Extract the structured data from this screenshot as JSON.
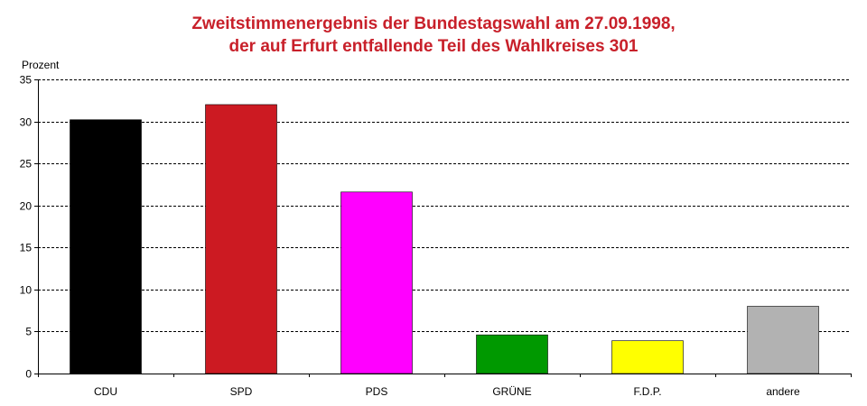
{
  "chart_data": {
    "type": "bar",
    "title_lines": [
      "Zweitstimmenergebnis der Bundestagswahl am 27.09.1998,",
      "der auf Erfurt entfallende Teil des Wahlkreises 301"
    ],
    "ylabel": "Prozent",
    "xlabel": "",
    "ylim": [
      0,
      35
    ],
    "yticks": [
      "0",
      "5",
      "10",
      "15",
      "20",
      "25",
      "30",
      "35"
    ],
    "grid": true,
    "legend": "none",
    "categories": [
      "CDU",
      "SPD",
      "PDS",
      "GRÜNE",
      "F.D.P.",
      "andere"
    ],
    "values": [
      30.2,
      32.0,
      21.6,
      4.6,
      3.9,
      8.0
    ],
    "colors": [
      "#000000",
      "#cc1a22",
      "#ff00ff",
      "#009900",
      "#ffff00",
      "#b2b2b2"
    ]
  }
}
